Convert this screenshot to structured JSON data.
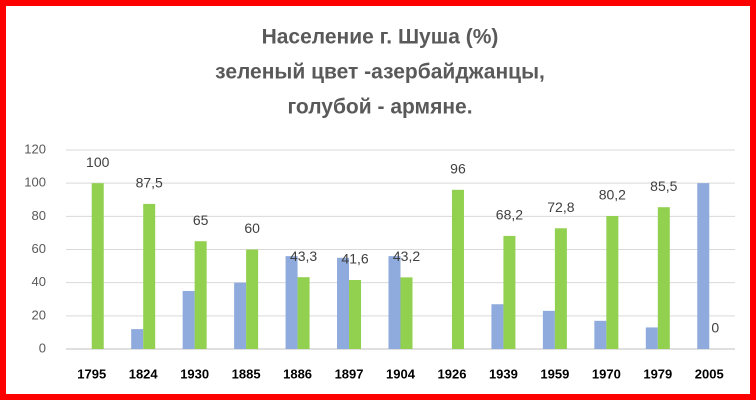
{
  "chart_data": {
    "type": "bar",
    "title": [
      "Население г. Шуша (%)",
      "зеленый цвет -азербайджанцы,",
      "голубой - армяне."
    ],
    "categories": [
      "1795",
      "1824",
      "1930",
      "1885",
      "1886",
      "1897",
      "1904",
      "1926",
      "1939",
      "1959",
      "1970",
      "1979",
      "2005"
    ],
    "series": [
      {
        "color": "#8faadc",
        "values": [
          null,
          12,
          35,
          40,
          56,
          55,
          56,
          null,
          27,
          23,
          17,
          13,
          100
        ]
      },
      {
        "color": "#92d050",
        "values": [
          100,
          87.5,
          65,
          60,
          43.3,
          41.6,
          43.2,
          96,
          68.2,
          72.8,
          80.2,
          85.5,
          0
        ],
        "value_labels": [
          "100",
          "87,5",
          "65",
          "60",
          "43,3",
          "41,6",
          "43,2",
          "96",
          "68,2",
          "72,8",
          "80,2",
          "85,5",
          "0"
        ]
      }
    ],
    "ylim": [
      0,
      120
    ],
    "yticks": [
      0,
      20,
      40,
      60,
      80,
      100,
      120
    ],
    "grid": true
  }
}
